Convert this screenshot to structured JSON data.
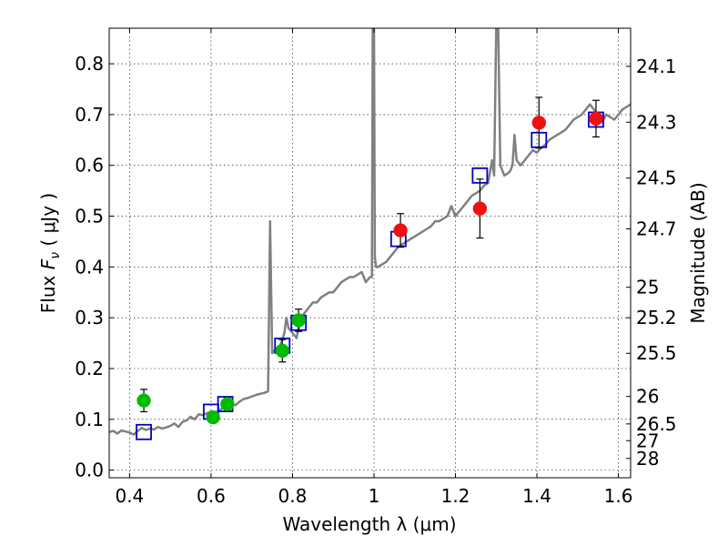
{
  "chart_data": {
    "type": "scatter",
    "xlabel": "Wavelength  λ (μm)",
    "ylabel_prefix": "Flux  ",
    "ylabel_var": "F",
    "ylabel_sub": "ν",
    "ylabel_suffix": "  ( μJy )",
    "y2label": "Magnitude (AB)",
    "xlim": [
      0.35,
      1.63
    ],
    "ylim": [
      -0.015,
      0.87
    ],
    "grid": true,
    "colors": {
      "spectrum": "#808080",
      "green_points": "#00bb00",
      "red_points": "#ee1111",
      "model_boxes": "#0000cc",
      "error_bars": "#000000"
    },
    "x_ticks": [
      0.4,
      0.6,
      0.8,
      1.0,
      1.2,
      1.4,
      1.6
    ],
    "x_tick_labels": [
      "0.4",
      "0.6",
      "0.8",
      "1",
      "1.2",
      "1.4",
      "1.6"
    ],
    "y_ticks": [
      0.0,
      0.1,
      0.2,
      0.3,
      0.4,
      0.5,
      0.6,
      0.7,
      0.8
    ],
    "y_tick_labels": [
      "0.0",
      "0.1",
      "0.2",
      "0.3",
      "0.4",
      "0.5",
      "0.6",
      "0.7",
      "0.8"
    ],
    "magnitude_ticks": [
      {
        "label": "24.1",
        "flux": 0.795
      },
      {
        "label": "24.3",
        "flux": 0.685
      },
      {
        "label": "24.5",
        "flux": 0.575
      },
      {
        "label": "24.7",
        "flux": 0.475
      },
      {
        "label": "25",
        "flux": 0.36
      },
      {
        "label": "25.2",
        "flux": 0.3
      },
      {
        "label": "25.5",
        "flux": 0.23
      },
      {
        "label": "26",
        "flux": 0.145
      },
      {
        "label": "26.5",
        "flux": 0.091
      },
      {
        "label": "27",
        "flux": 0.058
      },
      {
        "label": "28",
        "flux": 0.023
      }
    ],
    "series": [
      {
        "name": "spectrum",
        "kind": "line",
        "x": [
          0.35,
          0.36,
          0.37,
          0.38,
          0.39,
          0.4,
          0.41,
          0.42,
          0.43,
          0.44,
          0.45,
          0.46,
          0.47,
          0.48,
          0.49,
          0.5,
          0.51,
          0.52,
          0.53,
          0.54,
          0.55,
          0.56,
          0.57,
          0.58,
          0.59,
          0.6,
          0.61,
          0.62,
          0.63,
          0.64,
          0.65,
          0.66,
          0.67,
          0.68,
          0.69,
          0.7,
          0.71,
          0.72,
          0.73,
          0.74,
          0.745,
          0.75,
          0.755,
          0.76,
          0.77,
          0.78,
          0.785,
          0.79,
          0.8,
          0.81,
          0.82,
          0.83,
          0.84,
          0.85,
          0.86,
          0.87,
          0.88,
          0.89,
          0.9,
          0.91,
          0.92,
          0.93,
          0.94,
          0.95,
          0.96,
          0.97,
          0.98,
          0.99,
          0.995,
          0.997,
          1.0,
          1.002,
          1.005,
          1.01,
          1.02,
          1.03,
          1.04,
          1.05,
          1.06,
          1.07,
          1.08,
          1.09,
          1.1,
          1.11,
          1.12,
          1.13,
          1.14,
          1.15,
          1.16,
          1.17,
          1.18,
          1.19,
          1.2,
          1.21,
          1.22,
          1.23,
          1.24,
          1.25,
          1.26,
          1.27,
          1.28,
          1.29,
          1.295,
          1.3,
          1.305,
          1.31,
          1.32,
          1.33,
          1.335,
          1.34,
          1.345,
          1.35,
          1.36,
          1.37,
          1.38,
          1.39,
          1.4,
          1.41,
          1.42,
          1.43,
          1.44,
          1.45,
          1.46,
          1.47,
          1.48,
          1.49,
          1.5,
          1.51,
          1.52,
          1.53,
          1.54,
          1.55,
          1.56,
          1.57,
          1.58,
          1.59,
          1.6,
          1.61,
          1.62,
          1.63
        ],
        "y": [
          0.075,
          0.077,
          0.072,
          0.078,
          0.076,
          0.074,
          0.07,
          0.077,
          0.083,
          0.079,
          0.082,
          0.08,
          0.085,
          0.082,
          0.084,
          0.087,
          0.092,
          0.085,
          0.095,
          0.098,
          0.105,
          0.1,
          0.11,
          0.108,
          0.112,
          0.115,
          0.112,
          0.118,
          0.122,
          0.125,
          0.13,
          0.128,
          0.135,
          0.14,
          0.142,
          0.145,
          0.148,
          0.15,
          0.152,
          0.155,
          0.49,
          0.23,
          0.235,
          0.24,
          0.245,
          0.27,
          0.3,
          0.28,
          0.27,
          0.26,
          0.3,
          0.31,
          0.32,
          0.33,
          0.33,
          0.34,
          0.345,
          0.35,
          0.35,
          0.36,
          0.37,
          0.375,
          0.38,
          0.38,
          0.385,
          0.39,
          0.37,
          0.38,
          0.38,
          0.87,
          0.87,
          0.42,
          0.4,
          0.4,
          0.405,
          0.41,
          0.42,
          0.43,
          0.44,
          0.445,
          0.45,
          0.455,
          0.46,
          0.465,
          0.47,
          0.475,
          0.48,
          0.49,
          0.49,
          0.495,
          0.5,
          0.52,
          0.5,
          0.51,
          0.52,
          0.53,
          0.54,
          0.545,
          0.55,
          0.56,
          0.565,
          0.61,
          0.58,
          0.87,
          0.87,
          0.6,
          0.58,
          0.585,
          0.59,
          0.6,
          0.66,
          0.61,
          0.6,
          0.61,
          0.62,
          0.63,
          0.625,
          0.635,
          0.64,
          0.65,
          0.655,
          0.66,
          0.665,
          0.67,
          0.68,
          0.69,
          0.695,
          0.7,
          0.71,
          0.72,
          0.71,
          0.69,
          0.685,
          0.7,
          0.695,
          0.69,
          0.7,
          0.71,
          0.715,
          0.72
        ]
      },
      {
        "name": "model_boxes",
        "kind": "box",
        "x": [
          0.435,
          0.6,
          0.635,
          0.775,
          0.815,
          1.06,
          1.26,
          1.405,
          1.545
        ],
        "y": [
          0.075,
          0.115,
          0.13,
          0.245,
          0.29,
          0.455,
          0.58,
          0.65,
          0.69
        ]
      },
      {
        "name": "green_points",
        "kind": "point",
        "x": [
          0.435,
          0.605,
          0.64,
          0.775,
          0.815
        ],
        "y": [
          0.137,
          0.104,
          0.13,
          0.235,
          0.295
        ],
        "err": [
          0.022,
          0.006,
          0.014,
          0.022,
          0.022
        ]
      },
      {
        "name": "red_points",
        "kind": "point",
        "x": [
          1.065,
          1.26,
          1.405,
          1.545
        ],
        "y": [
          0.472,
          0.515,
          0.684,
          0.692
        ],
        "err": [
          0.033,
          0.058,
          0.05,
          0.036
        ]
      }
    ]
  }
}
